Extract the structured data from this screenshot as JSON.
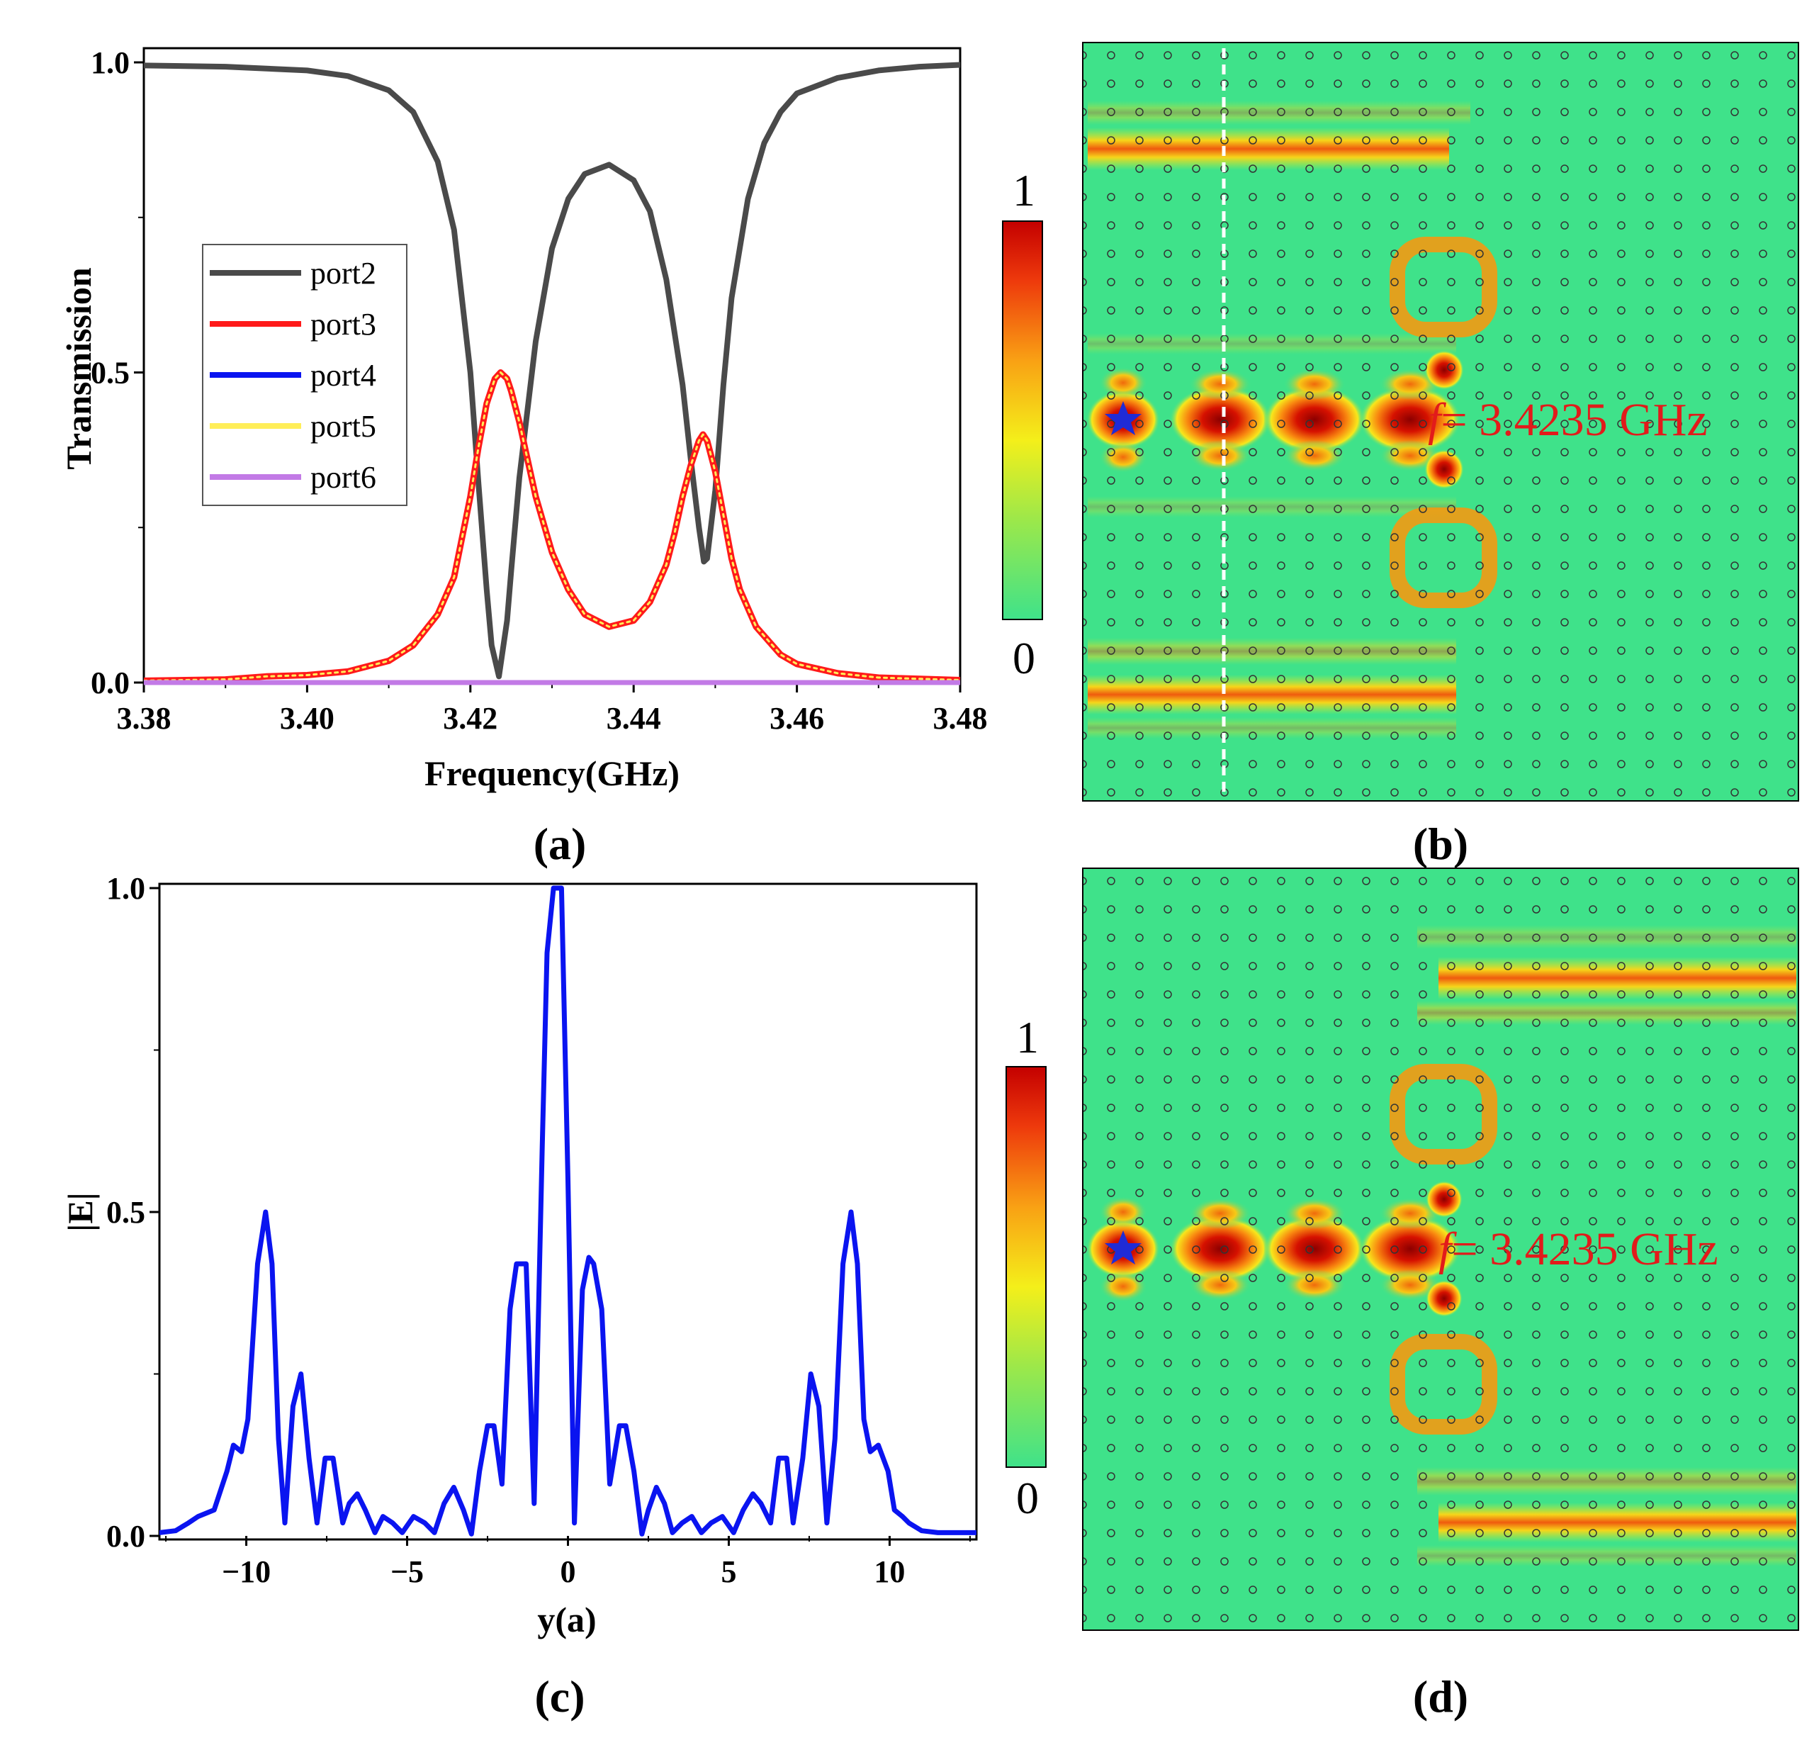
{
  "colors": {
    "port2": "#4a4a4a",
    "port3": "#ff1a1a",
    "port4": "#0a14f0",
    "port5": "#ffee58",
    "port6": "#c27ae6",
    "field_background": "#3fe28a",
    "field_hot": "#b30000",
    "freq_text": "#e21b1b",
    "star": "#1f2bd6"
  },
  "panels": {
    "a": {
      "label": "(a)"
    },
    "b": {
      "label": "(b)"
    },
    "c": {
      "label": "(c)"
    },
    "d": {
      "label": "(d)"
    }
  },
  "colorbars": {
    "b": {
      "max_label": "1",
      "min_label": "0"
    },
    "d": {
      "max_label": "1",
      "min_label": "0"
    }
  },
  "field_maps": {
    "b": {
      "freq_symbol": "f",
      "freq_text": "= 3.4235 GHz",
      "probe_line": "dashed vertical"
    },
    "d": {
      "freq_symbol": "f",
      "freq_text": "= 3.4235 GHz"
    }
  },
  "chart_data": [
    {
      "id": "a",
      "type": "line",
      "title": "",
      "xlabel": "Frequency(GHz)",
      "ylabel": "Transmission",
      "xlim": [
        3.38,
        3.48
      ],
      "ylim": [
        0,
        1
      ],
      "xticks": [
        "3.38",
        "3.40",
        "3.42",
        "3.44",
        "3.46",
        "3.48"
      ],
      "yticks": [
        "0.0",
        "0.5",
        "1.0"
      ],
      "legend_position": "middle-left",
      "series": [
        {
          "name": "port2",
          "x": [
            3.38,
            3.39,
            3.4,
            3.405,
            3.41,
            3.413,
            3.416,
            3.418,
            3.42,
            3.421,
            3.422,
            3.4226,
            3.4235,
            3.4245,
            3.425,
            3.426,
            3.428,
            3.43,
            3.432,
            3.434,
            3.437,
            3.44,
            3.442,
            3.444,
            3.446,
            3.447,
            3.448,
            3.4486,
            3.449,
            3.45,
            3.451,
            3.452,
            3.454,
            3.456,
            3.458,
            3.46,
            3.465,
            3.47,
            3.475,
            3.48
          ],
          "y": [
            0.995,
            0.993,
            0.987,
            0.978,
            0.955,
            0.92,
            0.84,
            0.73,
            0.5,
            0.32,
            0.15,
            0.06,
            0.01,
            0.1,
            0.18,
            0.33,
            0.55,
            0.7,
            0.78,
            0.82,
            0.835,
            0.81,
            0.76,
            0.65,
            0.48,
            0.36,
            0.25,
            0.195,
            0.2,
            0.31,
            0.48,
            0.62,
            0.78,
            0.87,
            0.92,
            0.95,
            0.975,
            0.987,
            0.993,
            0.996
          ]
        },
        {
          "name": "port3",
          "x": [
            3.38,
            3.39,
            3.395,
            3.4,
            3.405,
            3.41,
            3.413,
            3.416,
            3.418,
            3.42,
            3.421,
            3.422,
            3.423,
            3.4237,
            3.4245,
            3.425,
            3.426,
            3.427,
            3.428,
            3.43,
            3.432,
            3.434,
            3.437,
            3.44,
            3.442,
            3.444,
            3.445,
            3.446,
            3.447,
            3.448,
            3.4485,
            3.449,
            3.45,
            3.451,
            3.452,
            3.453,
            3.455,
            3.458,
            3.46,
            3.465,
            3.47,
            3.48
          ],
          "y": [
            0.003,
            0.005,
            0.01,
            0.012,
            0.018,
            0.035,
            0.06,
            0.11,
            0.17,
            0.3,
            0.38,
            0.45,
            0.49,
            0.5,
            0.49,
            0.47,
            0.42,
            0.36,
            0.3,
            0.21,
            0.15,
            0.11,
            0.09,
            0.1,
            0.13,
            0.19,
            0.24,
            0.3,
            0.35,
            0.39,
            0.4,
            0.39,
            0.34,
            0.27,
            0.2,
            0.15,
            0.09,
            0.045,
            0.03,
            0.015,
            0.008,
            0.004
          ]
        },
        {
          "name": "port4",
          "x": [
            3.38,
            3.48
          ],
          "y": [
            0.0,
            0.0
          ]
        },
        {
          "name": "port5",
          "x": [
            3.38,
            3.39,
            3.395,
            3.4,
            3.405,
            3.41,
            3.413,
            3.416,
            3.418,
            3.42,
            3.421,
            3.422,
            3.423,
            3.4237,
            3.4245,
            3.425,
            3.426,
            3.427,
            3.428,
            3.43,
            3.432,
            3.434,
            3.437,
            3.44,
            3.442,
            3.444,
            3.445,
            3.446,
            3.447,
            3.448,
            3.4485,
            3.449,
            3.45,
            3.451,
            3.452,
            3.453,
            3.455,
            3.458,
            3.46,
            3.465,
            3.47,
            3.48
          ],
          "y": [
            0.003,
            0.005,
            0.01,
            0.012,
            0.018,
            0.035,
            0.06,
            0.11,
            0.17,
            0.3,
            0.38,
            0.45,
            0.49,
            0.5,
            0.49,
            0.47,
            0.42,
            0.36,
            0.3,
            0.21,
            0.15,
            0.11,
            0.09,
            0.1,
            0.13,
            0.19,
            0.24,
            0.3,
            0.35,
            0.39,
            0.4,
            0.39,
            0.34,
            0.27,
            0.2,
            0.15,
            0.09,
            0.045,
            0.03,
            0.015,
            0.008,
            0.004
          ]
        },
        {
          "name": "port6",
          "x": [
            3.38,
            3.48
          ],
          "y": [
            0.0,
            0.0
          ]
        }
      ]
    },
    {
      "id": "c",
      "type": "line",
      "title": "",
      "xlabel": "y(a)",
      "ylabel": "|E|",
      "xlim": [
        -12.7,
        12.7
      ],
      "ylim": [
        0,
        1
      ],
      "xticks": [
        "−10",
        "−5",
        "0",
        "5",
        "10"
      ],
      "yticks": [
        "0.0",
        "0.5",
        "1.0"
      ],
      "series": [
        {
          "name": "|E|",
          "x": [
            -12.7,
            -12.2,
            -11.8,
            -11.5,
            -11.0,
            -10.6,
            -10.4,
            -10.15,
            -9.95,
            -9.65,
            -9.4,
            -9.2,
            -9.0,
            -8.8,
            -8.55,
            -8.3,
            -8.05,
            -7.8,
            -7.55,
            -7.3,
            -7.0,
            -6.8,
            -6.55,
            -6.3,
            -6.0,
            -5.75,
            -5.45,
            -5.15,
            -4.8,
            -4.45,
            -4.15,
            -3.85,
            -3.55,
            -3.25,
            -3.0,
            -2.75,
            -2.5,
            -2.3,
            -2.05,
            -1.8,
            -1.6,
            -1.3,
            -1.05,
            -0.8,
            -0.65,
            -0.45,
            -0.2,
            0.0,
            0.2,
            0.45,
            0.65,
            0.8,
            1.05,
            1.3,
            1.6,
            1.8,
            2.05,
            2.3,
            2.5,
            2.75,
            3.0,
            3.25,
            3.55,
            3.85,
            4.15,
            4.45,
            4.8,
            5.15,
            5.45,
            5.75,
            6.0,
            6.3,
            6.55,
            6.8,
            7.0,
            7.3,
            7.55,
            7.8,
            8.05,
            8.3,
            8.55,
            8.8,
            9.0,
            9.2,
            9.4,
            9.65,
            9.95,
            10.15,
            10.4,
            10.6,
            11.0,
            11.5,
            11.8,
            12.2,
            12.7
          ],
          "y": [
            0.005,
            0.008,
            0.02,
            0.03,
            0.04,
            0.1,
            0.14,
            0.13,
            0.18,
            0.42,
            0.5,
            0.42,
            0.15,
            0.02,
            0.2,
            0.25,
            0.12,
            0.02,
            0.12,
            0.12,
            0.02,
            0.05,
            0.065,
            0.04,
            0.005,
            0.03,
            0.02,
            0.005,
            0.03,
            0.02,
            0.005,
            0.05,
            0.075,
            0.04,
            0.003,
            0.1,
            0.17,
            0.17,
            0.08,
            0.35,
            0.42,
            0.42,
            0.05,
            0.6,
            0.9,
            1.0,
            1.0,
            0.55,
            0.02,
            0.38,
            0.43,
            0.42,
            0.35,
            0.08,
            0.17,
            0.17,
            0.1,
            0.003,
            0.04,
            0.075,
            0.05,
            0.005,
            0.02,
            0.03,
            0.005,
            0.02,
            0.03,
            0.005,
            0.04,
            0.065,
            0.05,
            0.02,
            0.12,
            0.12,
            0.02,
            0.12,
            0.25,
            0.2,
            0.02,
            0.15,
            0.42,
            0.5,
            0.42,
            0.18,
            0.13,
            0.14,
            0.1,
            0.04,
            0.03,
            0.02,
            0.008,
            0.005,
            0.005,
            0.005,
            0.005
          ]
        }
      ]
    }
  ]
}
